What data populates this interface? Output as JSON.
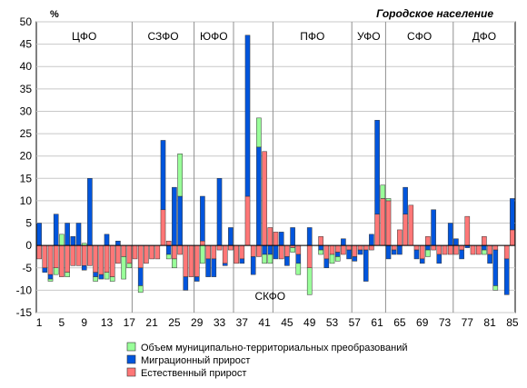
{
  "chart_data": {
    "type": "bar",
    "stacked": true,
    "title": "Городское население",
    "unit": "%",
    "ylim": [
      -15,
      50
    ],
    "yticks": [
      -15,
      -10,
      -5,
      0,
      5,
      10,
      15,
      20,
      25,
      30,
      35,
      40,
      45,
      50
    ],
    "xtick_labels": [
      "1",
      "5",
      "9",
      "13",
      "17",
      "21",
      "25",
      "29",
      "33",
      "37",
      "41",
      "45",
      "49",
      "53",
      "57",
      "61",
      "65",
      "69",
      "73",
      "77",
      "81",
      "85"
    ],
    "grid": true,
    "legend_position": "bottom",
    "districts": [
      {
        "label": "ЦФО",
        "start": 1,
        "end": 17
      },
      {
        "label": "СЗФО",
        "start": 18,
        "end": 28
      },
      {
        "label": "ЮФО",
        "start": 29,
        "end": 35
      },
      {
        "label": "СКФО",
        "start": 36,
        "end": 42
      },
      {
        "label": "ПФО",
        "start": 43,
        "end": 56
      },
      {
        "label": "УФО",
        "start": 57,
        "end": 62
      },
      {
        "label": "СФО",
        "start": 63,
        "end": 74
      },
      {
        "label": "ДФО",
        "start": 75,
        "end": 85
      }
    ],
    "categories": [
      "1",
      "2",
      "3",
      "4",
      "5",
      "6",
      "7",
      "8",
      "9",
      "10",
      "11",
      "12",
      "13",
      "14",
      "15",
      "16",
      "17",
      "18",
      "19",
      "20",
      "21",
      "22",
      "23",
      "24",
      "25",
      "26",
      "27",
      "28",
      "29",
      "30",
      "31",
      "32",
      "33",
      "34",
      "35",
      "36",
      "37",
      "38",
      "39",
      "40",
      "41",
      "42",
      "43",
      "44",
      "45",
      "46",
      "47",
      "48",
      "49",
      "50",
      "51",
      "52",
      "53",
      "54",
      "55",
      "56",
      "57",
      "58",
      "59",
      "60",
      "61",
      "62",
      "63",
      "64",
      "65",
      "66",
      "67",
      "68",
      "69",
      "70",
      "71",
      "72",
      "73",
      "74",
      "75",
      "76",
      "77",
      "78",
      "79",
      "80",
      "81",
      "82",
      "83",
      "84",
      "85"
    ],
    "series": [
      {
        "name": "Объем муниципально-территориальных преобразований",
        "color": "#99ff99",
        "values": [
          0,
          0,
          -0.5,
          -1.5,
          2.5,
          -1,
          0,
          0,
          0.5,
          0,
          -1,
          0,
          -1.5,
          -1,
          0,
          -5,
          -1,
          0,
          -1.5,
          0,
          0,
          0,
          0,
          -1,
          -2,
          9.5,
          0,
          0,
          0,
          -4,
          0,
          0,
          0,
          0,
          0,
          0,
          0,
          0,
          0,
          6.5,
          -2,
          -2,
          0,
          0,
          0,
          -1,
          -2.5,
          0,
          -6,
          0,
          -1,
          0,
          -2,
          -1,
          0,
          0,
          0,
          0,
          0,
          0,
          0,
          3,
          0.5,
          0,
          0,
          0,
          0,
          0,
          0,
          -1.5,
          0,
          0,
          0,
          0,
          0,
          0,
          0,
          0,
          0,
          -1,
          0,
          -1,
          0,
          0,
          0
        ]
      },
      {
        "name": "Миграционный прирост",
        "color": "#0055dd",
        "values": [
          5,
          -1,
          -1,
          7,
          0,
          5,
          2,
          5,
          -1,
          15,
          -1,
          -1,
          2.5,
          0,
          1,
          0,
          0,
          0,
          -4,
          0,
          0,
          0,
          15.5,
          -2,
          13,
          11,
          -3,
          0,
          -1,
          10,
          -4,
          -4,
          15,
          -0.5,
          4,
          0,
          -1,
          36,
          -4,
          22,
          -2,
          -2,
          -3,
          3,
          -2,
          4,
          -2,
          0,
          4,
          0,
          -1,
          -2,
          0,
          -1,
          1.5,
          -2,
          -1,
          -1,
          -7,
          2.5,
          21,
          0,
          -3,
          -1,
          -2,
          6,
          0,
          -2,
          -1,
          -1,
          8,
          -2,
          0,
          5,
          1.5,
          -2,
          -0.5,
          0,
          0,
          -1,
          -2,
          -8,
          0,
          -8,
          7
        ]
      },
      {
        "name": "Естественный прирост",
        "color": "#ff7777",
        "values": [
          -3,
          -5,
          -6.5,
          -5,
          -7,
          -6,
          -4.5,
          -4.5,
          -4.5,
          -4.5,
          -6,
          -6.5,
          -6,
          -7,
          -4,
          -2.5,
          -4,
          -3,
          -5,
          -4,
          -3,
          -3,
          8,
          1,
          -3,
          -2,
          -7,
          -7,
          -7,
          1,
          -3,
          -3,
          -1,
          -4,
          -1,
          -4,
          -3,
          11,
          -2.5,
          -2.5,
          21,
          4,
          3,
          -3,
          -2.5,
          -0.5,
          -2,
          0,
          -5,
          0,
          2,
          -3,
          -2,
          -1.5,
          -2,
          -1,
          -2.5,
          -1,
          -1,
          -1,
          7,
          10.5,
          10,
          -1,
          3.5,
          7,
          9,
          -1,
          -3,
          2,
          -1,
          -2,
          -2,
          -2,
          -2,
          -1,
          6.5,
          -2,
          -2,
          2,
          -2,
          -1,
          0,
          -3,
          3.5
        ]
      }
    ]
  },
  "legend": [
    {
      "label": "Объем муниципально-территориальных преобразований",
      "color": "#99ff99"
    },
    {
      "label": "Миграционный прирост",
      "color": "#0055dd"
    },
    {
      "label": "Естественный прирост",
      "color": "#ff7777"
    }
  ]
}
